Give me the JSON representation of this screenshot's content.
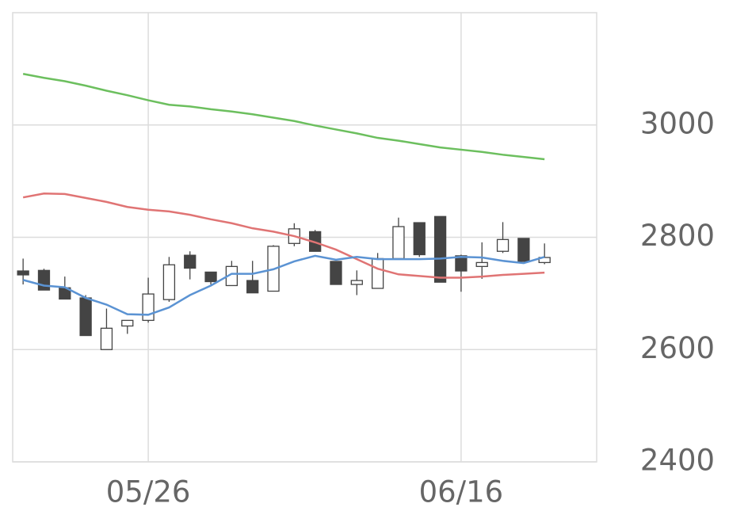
{
  "chart_data": {
    "type": "candlestick",
    "categories": [
      null,
      null,
      null,
      null,
      null,
      null,
      "05/26",
      null,
      null,
      null,
      null,
      null,
      null,
      null,
      null,
      null,
      null,
      null,
      null,
      null,
      null,
      "06/16",
      null,
      null,
      null,
      null
    ],
    "open": [
      2740,
      2741,
      2710,
      2692,
      2600,
      2642,
      2652,
      2689,
      2768,
      2738,
      2714,
      2723,
      2704,
      2789,
      2810,
      2757,
      2716,
      2709,
      2762,
      2826,
      2837,
      2767,
      2748,
      2775,
      2798,
      2755
    ],
    "high": [
      2762,
      2744,
      2730,
      2697,
      2673,
      2652,
      2728,
      2765,
      2775,
      2738,
      2758,
      2758,
      2786,
      2825,
      2813,
      2757,
      2741,
      2772,
      2835,
      2826,
      2837,
      2769,
      2791,
      2827,
      2798,
      2789
    ],
    "low": [
      2716,
      2706,
      2690,
      2625,
      2600,
      2628,
      2648,
      2685,
      2725,
      2716,
      2714,
      2701,
      2704,
      2784,
      2775,
      2716,
      2697,
      2709,
      2762,
      2765,
      2720,
      2703,
      2726,
      2772,
      2757,
      2752
    ],
    "close": [
      2733,
      2706,
      2690,
      2625,
      2638,
      2652,
      2699,
      2751,
      2745,
      2721,
      2748,
      2701,
      2784,
      2815,
      2775,
      2716,
      2723,
      2762,
      2819,
      2769,
      2720,
      2740,
      2755,
      2796,
      2757,
      2764
    ],
    "up_color": "#ffffff",
    "down_color": "#444444",
    "lines": [
      {
        "color": "#6cbf5e",
        "values": [
          3091,
          3084,
          3078,
          3070,
          3061,
          3053,
          3044,
          3036,
          3033,
          3028,
          3024,
          3019,
          3013,
          3007,
          2999,
          2992,
          2985,
          2977,
          2972,
          2966,
          2960,
          2956,
          2952,
          2947,
          2943,
          2939
        ]
      },
      {
        "color": "#e07474",
        "values": [
          2871,
          2878,
          2877,
          2870,
          2863,
          2854,
          2849,
          2846,
          2840,
          2832,
          2825,
          2816,
          2810,
          2802,
          2791,
          2778,
          2761,
          2744,
          2734,
          2731,
          2728,
          2728,
          2730,
          2733,
          2735,
          2737
        ]
      },
      {
        "color": "#5b93d3",
        "values": [
          2724,
          2714,
          2711,
          2692,
          2680,
          2663,
          2662,
          2675,
          2697,
          2714,
          2735,
          2735,
          2743,
          2757,
          2767,
          2760,
          2765,
          2761,
          2761,
          2761,
          2762,
          2765,
          2764,
          2758,
          2754,
          2765
        ]
      }
    ],
    "ylim": [
      2400,
      3200
    ],
    "yticks": [
      2400,
      2600,
      2800,
      3000
    ],
    "grid": true
  }
}
